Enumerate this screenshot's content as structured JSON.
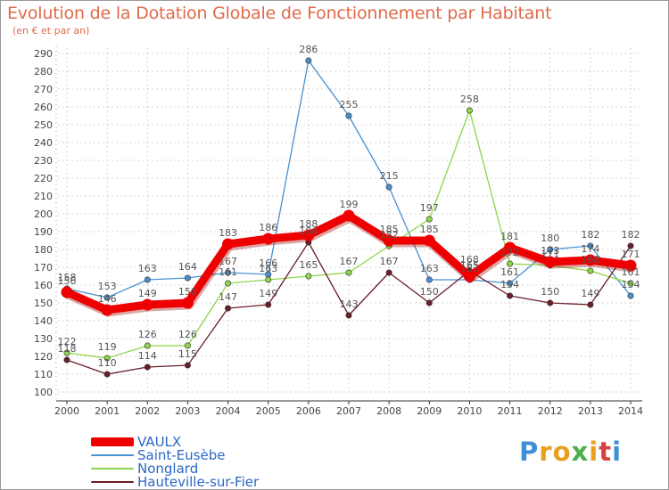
{
  "title": "Evolution de la Dotation Globale de Fonctionnement par Habitant",
  "subtitle": "(en € et par an)",
  "logo": {
    "text": "Proxiti",
    "letters": [
      "P",
      "r",
      "o",
      "x",
      "i",
      "t",
      "i"
    ],
    "colors": [
      "#3d8fd8",
      "#e8a020",
      "#e8a020",
      "#4ab04a",
      "#e8a020",
      "#d84040",
      "#3d8fd8"
    ]
  },
  "chart_data": {
    "type": "line",
    "title": "Evolution de la Dotation Globale de Fonctionnement par Habitant",
    "subtitle": "(en € et par an)",
    "xlabel": "",
    "ylabel": "",
    "x": [
      "2000",
      "2001",
      "2002",
      "2003",
      "2004",
      "2005",
      "2006",
      "2007",
      "2008",
      "2009",
      "2010",
      "2011",
      "2012",
      "2013",
      "2014"
    ],
    "ylim": [
      100,
      290
    ],
    "yticks": [
      "100",
      "110",
      "120",
      "130",
      "140",
      "150",
      "160",
      "170",
      "180",
      "190",
      "200",
      "210",
      "220",
      "230",
      "240",
      "250",
      "260",
      "270",
      "280",
      "290"
    ],
    "grid": true,
    "series": [
      {
        "name": "VAULX",
        "color": "#ee0000",
        "thick": true,
        "values": [
          156,
          146,
          149,
          150,
          183,
          186,
          188,
          199,
          185,
          185,
          165,
          181,
          173,
          174,
          171
        ]
      },
      {
        "name": "Saint-Eusèbe",
        "color": "#4a90d0",
        "thick": false,
        "values": [
          158,
          153,
          163,
          164,
          167,
          166,
          286,
          255,
          215,
          163,
          163,
          161,
          180,
          182,
          154
        ]
      },
      {
        "name": "Nonglard",
        "color": "#8ed44a",
        "thick": false,
        "values": [
          122,
          119,
          126,
          126,
          161,
          163,
          165,
          167,
          182,
          197,
          258,
          172,
          171,
          168,
          161
        ]
      },
      {
        "name": "Hauteville-sur-Fier",
        "color": "#6b1e2a",
        "thick": false,
        "values": [
          118,
          110,
          114,
          115,
          147,
          149,
          184,
          143,
          167,
          150,
          168,
          154,
          150,
          149,
          182
        ]
      }
    ]
  }
}
